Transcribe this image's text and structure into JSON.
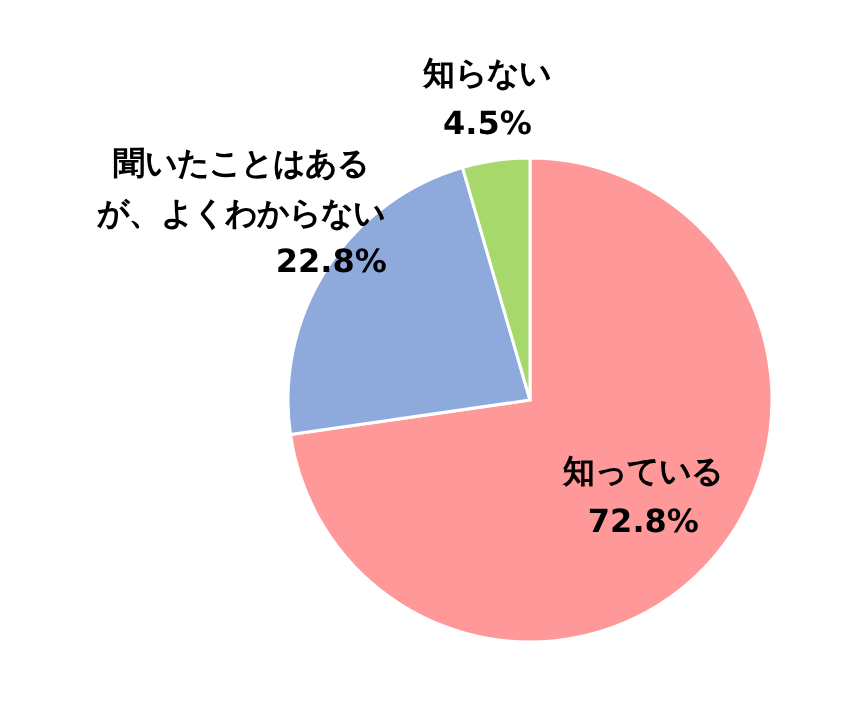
{
  "chart_data": {
    "type": "pie",
    "categories": [
      "知っている",
      "聞いたことはあるが、よくわからない",
      "知らない"
    ],
    "values": [
      72.8,
      22.8,
      4.5
    ],
    "value_labels": [
      "72.8%",
      "22.8%",
      "4.5%"
    ],
    "colors": [
      "#ff9999",
      "#8eaadc",
      "#a6d86b"
    ],
    "legend": false
  }
}
